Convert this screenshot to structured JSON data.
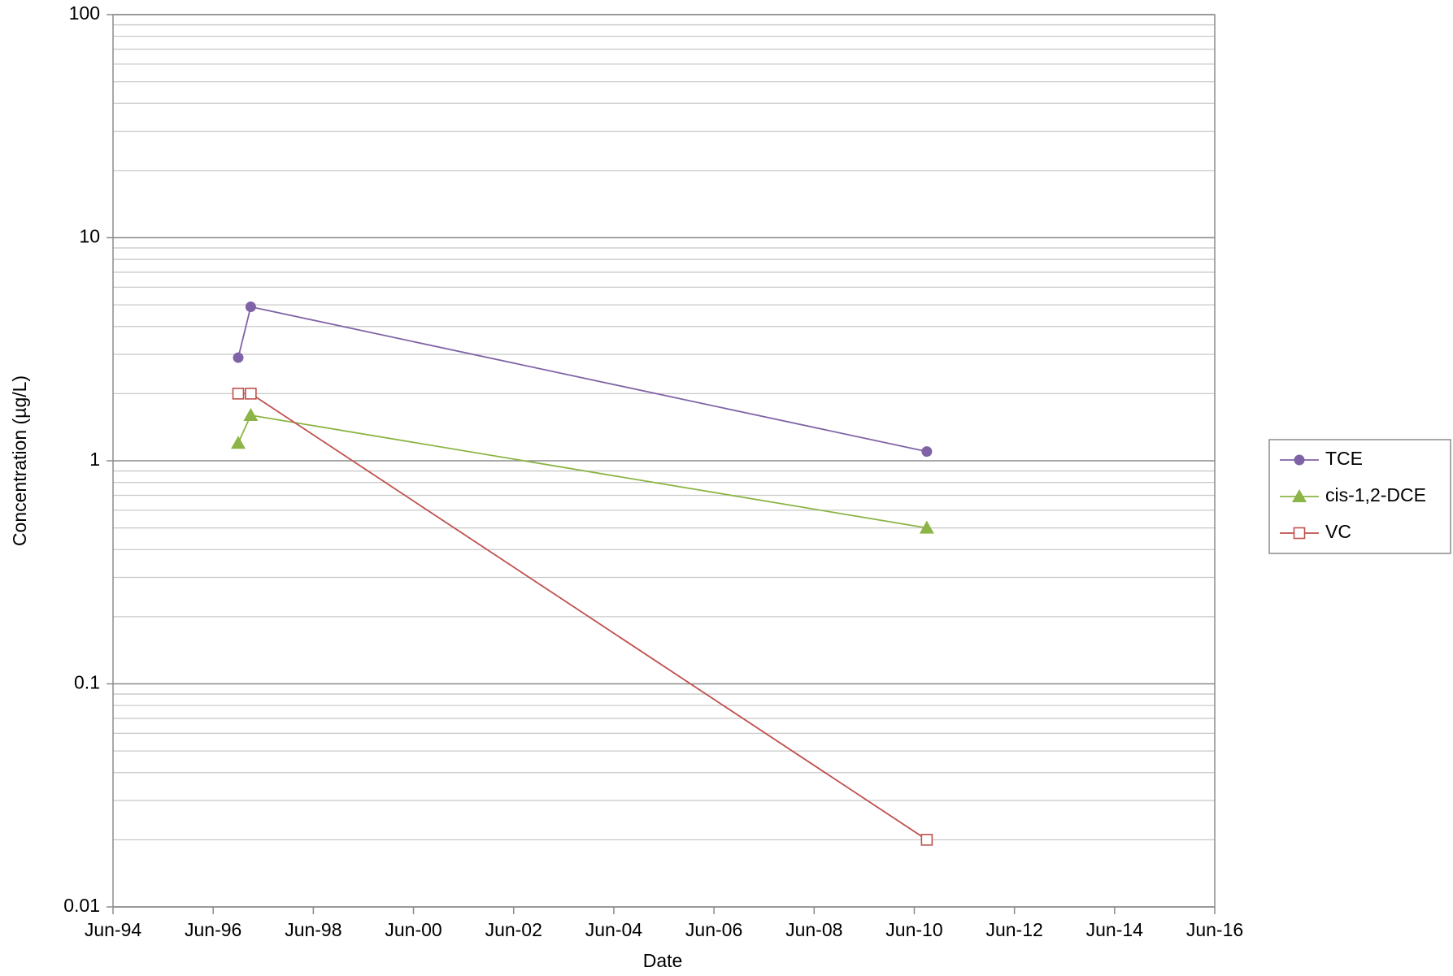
{
  "chart_data": {
    "type": "line",
    "x_label": "Date",
    "y_label": "Concentration (µg/L)",
    "x": [
      "1996-12",
      "1997-03",
      "2010-09"
    ],
    "series": [
      {
        "name": "TCE",
        "color": "#7f63a6",
        "marker": "circle",
        "values": [
          2.9,
          4.9,
          1.1
        ]
      },
      {
        "name": "cis-1,2-DCE",
        "color": "#8db446",
        "marker": "triangle",
        "values": [
          1.2,
          1.6,
          0.5
        ]
      },
      {
        "name": "VC",
        "color": "#c0504d",
        "marker": "square-open",
        "values": [
          2,
          2,
          0.02
        ]
      }
    ],
    "xlim": [
      "1994-06",
      "2016-06"
    ],
    "xticks": [
      {
        "value": "1994-06",
        "label": "Jun-94"
      },
      {
        "value": "1996-06",
        "label": "Jun-96"
      },
      {
        "value": "1998-06",
        "label": "Jun-98"
      },
      {
        "value": "2000-06",
        "label": "Jun-00"
      },
      {
        "value": "2002-06",
        "label": "Jun-02"
      },
      {
        "value": "2004-06",
        "label": "Jun-04"
      },
      {
        "value": "2006-06",
        "label": "Jun-06"
      },
      {
        "value": "2008-06",
        "label": "Jun-08"
      },
      {
        "value": "2010-06",
        "label": "Jun-10"
      },
      {
        "value": "2012-06",
        "label": "Jun-12"
      },
      {
        "value": "2014-06",
        "label": "Jun-14"
      },
      {
        "value": "2016-06",
        "label": "Jun-16"
      }
    ],
    "ylim": [
      0.01,
      100
    ],
    "yticks": [
      0.01,
      0.1,
      1,
      10,
      100
    ],
    "y_scale": "log",
    "grid": true,
    "legend": "right"
  }
}
